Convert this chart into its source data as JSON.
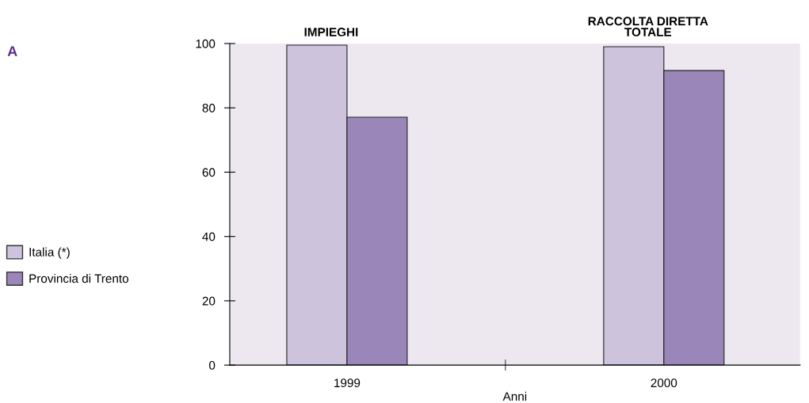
{
  "chart_data": {
    "type": "bar",
    "categories": [
      "1999",
      "2000"
    ],
    "xlabel": "Anni",
    "series": [
      {
        "name": "Italia (*)",
        "color": "#cdc3dd",
        "values": [
          99.5,
          99.0
        ]
      },
      {
        "name": "Provincia di Trento",
        "color": "#9a86b9",
        "values": [
          77.1,
          91.6
        ]
      }
    ],
    "ylim": [
      0,
      100
    ],
    "yticks": [
      0,
      20,
      40,
      60,
      80,
      100
    ],
    "grid": false,
    "legend": "left",
    "annotations": [
      "A",
      "IMPIEGHI",
      "RACCOLTA DIRETTA\nTOTALE"
    ]
  }
}
